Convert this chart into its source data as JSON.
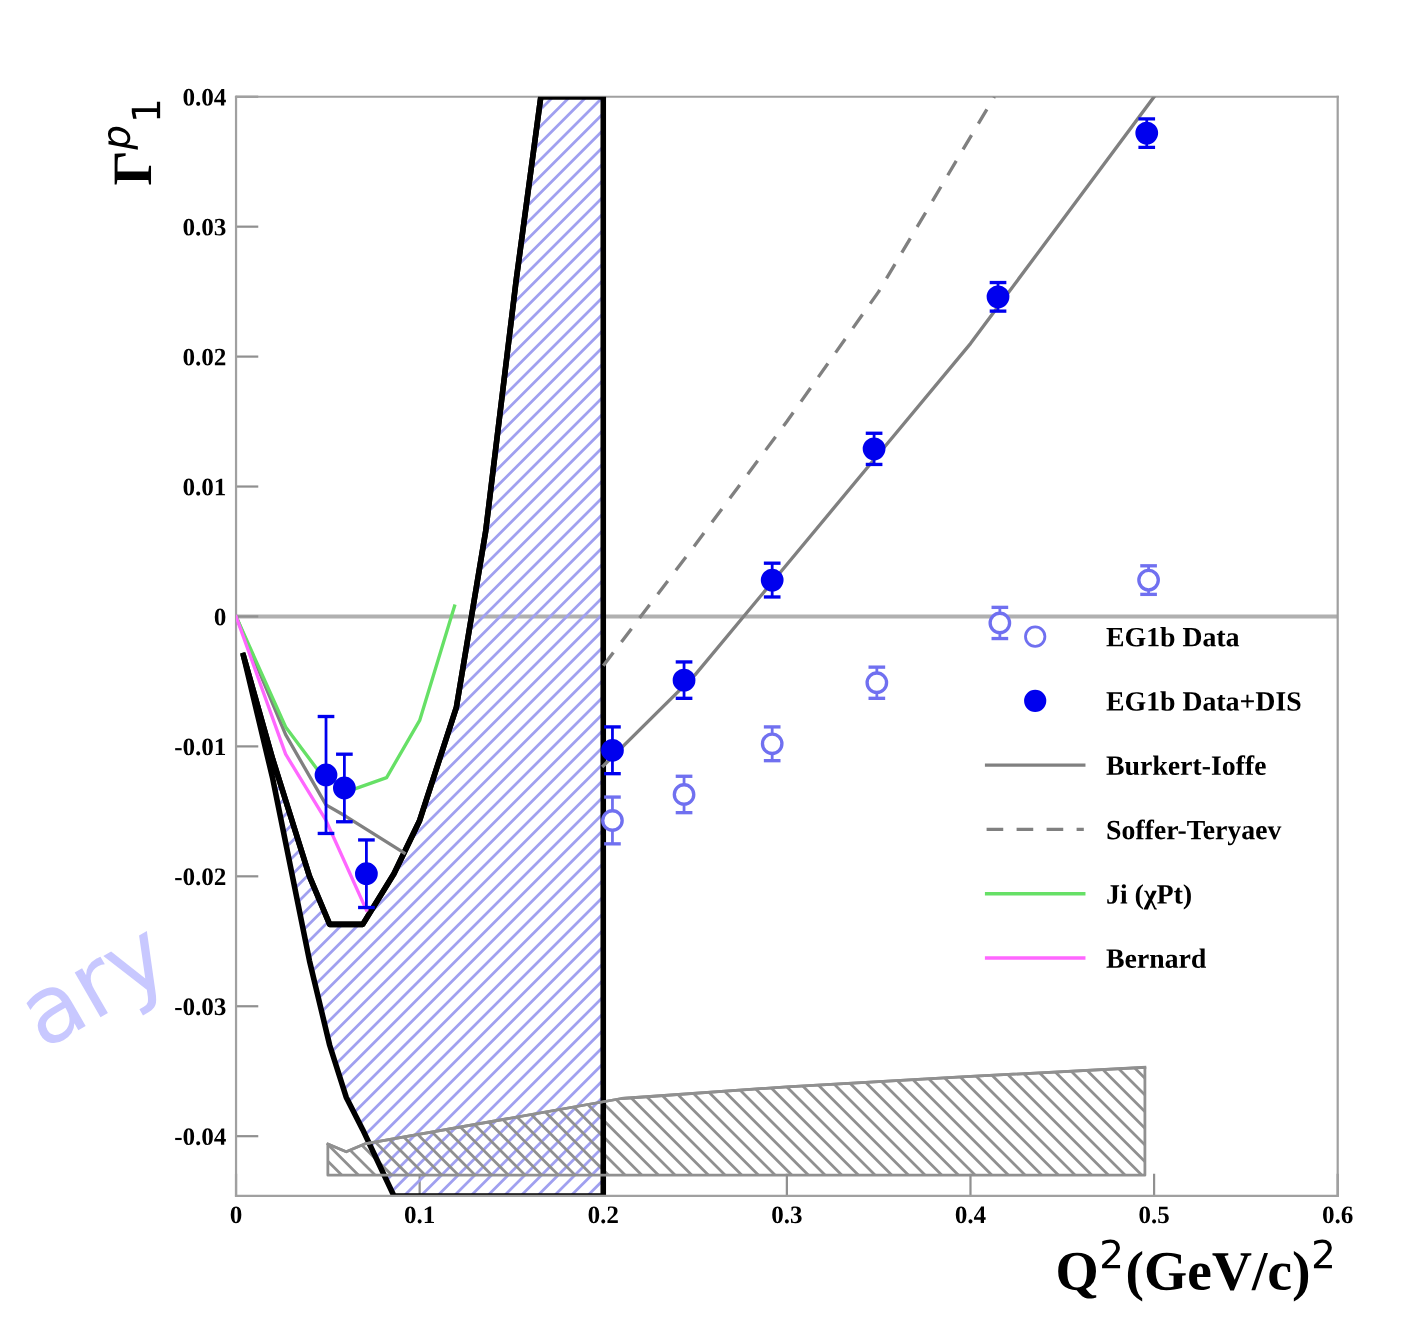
{
  "chart_data": {
    "type": "scatter",
    "xlabel": "Q$^{2}$(GeV/c)$^{2}$",
    "ylabel": "Γ$^{p}$$_{1}$",
    "xlim": [
      0,
      0.6
    ],
    "ylim": [
      -0.0446,
      0.04
    ],
    "xticks": [
      0,
      0.1,
      0.2,
      0.3,
      0.4,
      0.5,
      0.6
    ],
    "yticks": [
      -0.04,
      -0.03,
      -0.02,
      -0.01,
      0,
      0.01,
      0.02,
      0.03,
      0.04
    ],
    "grid": false,
    "legend": "right",
    "ref_lines": [
      {
        "axis": "y",
        "value": 0,
        "color": "#b0b0b0"
      }
    ],
    "annotations": [
      "ary"
    ],
    "series": [
      {
        "type": "line",
        "color": "#000000",
        "line_style": "solid",
        "x": [
          0.004,
          0.02,
          0.04,
          0.051,
          0.06,
          0.069,
          0.086,
          0.1,
          0.12,
          0.136,
          0.1525,
          0.166,
          0.2
        ],
        "values": [
          -0.003,
          -0.011,
          -0.02,
          -0.0237,
          -0.0237,
          -0.0237,
          -0.0198,
          -0.0157,
          -0.007,
          0.0066,
          0.0258,
          0.04,
          0.04
        ],
        "lower": [
          -0.003,
          -0.0125,
          -0.0265,
          -0.033,
          -0.037,
          -0.0395,
          -0.0446,
          -0.0446,
          -0.0446,
          -0.0446,
          -0.0446,
          -0.0446,
          -0.0446
        ],
        "upper": [
          -0.003,
          -0.011,
          -0.02,
          -0.0237,
          -0.0237,
          -0.0237,
          -0.0198,
          -0.0157,
          -0.007,
          0.0066,
          0.0258,
          0.04,
          0.04
        ]
      },
      {
        "type": "line",
        "color": "#909090",
        "line_style": "solid",
        "x": [
          0.05,
          0.06,
          0.07,
          0.21,
          0.3,
          0.4,
          0.495
        ],
        "values": [
          -0.0406,
          -0.0412,
          -0.0406,
          -0.0371,
          -0.0362,
          -0.0354,
          -0.0347
        ],
        "lower": [
          -0.043,
          -0.043,
          -0.043,
          -0.043,
          -0.043,
          -0.043,
          -0.043
        ],
        "upper": [
          -0.0406,
          -0.0412,
          -0.0406,
          -0.0371,
          -0.0362,
          -0.0354,
          -0.0347
        ]
      },
      {
        "name": "EG1b Data",
        "color": "#7070f0",
        "marker": "circle",
        "x": [
          0.205,
          0.244,
          0.292,
          0.349,
          0.416,
          0.497
        ],
        "values": [
          -0.0157,
          -0.0137,
          -0.0098,
          -0.0051,
          -0.0005,
          0.0028
        ],
        "errors": [
          0.0018,
          0.0014,
          0.0013,
          0.0012,
          0.0012,
          0.0011
        ]
      },
      {
        "name": "EG1b Data+DIS",
        "color": "#0000ee",
        "marker": "circle",
        "x": [
          0.049,
          0.059,
          0.071,
          0.205,
          0.244,
          0.292,
          0.3475,
          0.415,
          0.496
        ],
        "values": [
          -0.0122,
          -0.0132,
          -0.0198,
          -0.0103,
          -0.0049,
          0.0028,
          0.0129,
          0.0246,
          0.0372
        ],
        "errors": [
          0.0045,
          0.0026,
          0.0026,
          0.0018,
          0.0014,
          0.0013,
          0.0012,
          0.0011,
          0.0011
        ]
      },
      {
        "type": "line",
        "name": "Burkert-Ioffe",
        "color": "#808080",
        "line_style": "solid",
        "x": [
          0,
          0.027,
          0.049,
          0.06,
          0.0915,
          0.15,
          0.2,
          0.25,
          0.3,
          0.35,
          0.4,
          0.45,
          0.5
        ],
        "values": [
          0,
          -0.0091,
          -0.0145,
          -0.0154,
          -0.0182,
          null,
          -0.0115,
          -0.0045,
          0.004,
          0.0125,
          0.021,
          0.0305,
          0.04
        ]
      },
      {
        "type": "line",
        "name": "Soffer-Teryaev",
        "color": "#808080",
        "line_style": "dashed",
        "x": [
          0.2,
          0.25,
          0.3,
          0.35,
          0.413
        ],
        "values": [
          -0.0038,
          0.0055,
          0.015,
          0.025,
          0.04
        ]
      },
      {
        "type": "line",
        "name": "Ji (χPt)",
        "color": "#66e066",
        "line_style": "solid",
        "x": [
          0,
          0.027,
          0.046,
          0.062,
          0.082,
          0.1,
          0.119
        ],
        "values": [
          0,
          -0.0085,
          -0.0121,
          -0.0134,
          -0.0124,
          -0.008,
          0.0008
        ]
      },
      {
        "type": "line",
        "name": "Bernard",
        "color": "#ff66ff",
        "line_style": "solid",
        "x": [
          0,
          0.027,
          0.049,
          0.071
        ],
        "values": [
          0,
          -0.0106,
          -0.0157,
          -0.0226
        ]
      }
    ]
  }
}
